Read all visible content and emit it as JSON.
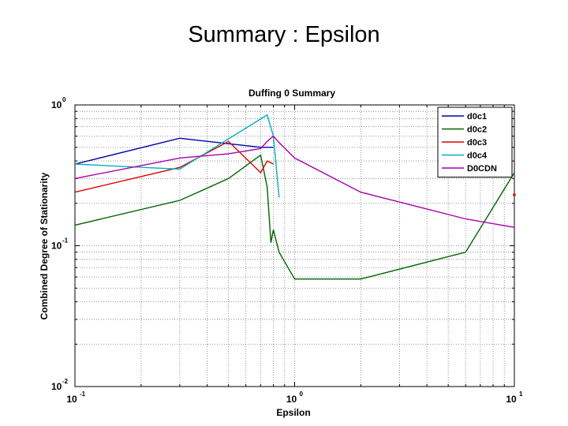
{
  "slide_title": "Summary : Epsilon",
  "chart_data": {
    "type": "line",
    "title": "Duffing 0 Summary",
    "xlabel": "Epsilon",
    "ylabel": "Combined Degree of Stationarity",
    "x_scale": "log",
    "y_scale": "log",
    "xlim": [
      0.1,
      10
    ],
    "ylim": [
      0.01,
      1
    ],
    "grid": true,
    "legend_position": "top-right",
    "x_ticks": [
      {
        "base": "10",
        "exp": "-1"
      },
      {
        "base": "10",
        "exp": "0"
      },
      {
        "base": "10",
        "exp": "1"
      }
    ],
    "y_ticks": [
      {
        "base": "10",
        "exp": "0"
      },
      {
        "base": "10",
        "exp": "-1"
      },
      {
        "base": "10",
        "exp": "-2"
      }
    ],
    "series": [
      {
        "name": "d0c1",
        "color": "#0000aa",
        "points": [
          [
            0.1,
            0.38
          ],
          [
            0.3,
            0.58
          ],
          [
            0.5,
            0.53
          ],
          [
            0.7,
            0.5
          ],
          [
            0.75,
            0.5
          ],
          [
            0.8,
            0.5
          ]
        ]
      },
      {
        "name": "d0c2",
        "color": "#006400",
        "points": [
          [
            0.1,
            0.14
          ],
          [
            0.3,
            0.21
          ],
          [
            0.5,
            0.3
          ],
          [
            0.7,
            0.44
          ],
          [
            0.75,
            0.26
          ],
          [
            0.78,
            0.105
          ],
          [
            0.8,
            0.13
          ],
          [
            0.85,
            0.09
          ],
          [
            1.0,
            0.058
          ],
          [
            2.0,
            0.058
          ],
          [
            6.0,
            0.09
          ],
          [
            10.0,
            0.33
          ]
        ]
      },
      {
        "name": "d0c3",
        "color": "#dd0000",
        "points": [
          [
            0.1,
            0.24
          ],
          [
            0.3,
            0.36
          ],
          [
            0.5,
            0.55
          ],
          [
            0.7,
            0.33
          ],
          [
            0.75,
            0.4
          ],
          [
            0.8,
            0.38
          ]
        ]
      },
      {
        "name": "d0c4",
        "color": "#00b0c0",
        "points": [
          [
            0.1,
            0.38
          ],
          [
            0.3,
            0.35
          ],
          [
            0.75,
            0.85
          ],
          [
            0.8,
            0.6
          ],
          [
            0.85,
            0.22
          ]
        ]
      },
      {
        "name": "D0CDN",
        "color": "#aa00aa",
        "points": [
          [
            0.1,
            0.3
          ],
          [
            0.3,
            0.42
          ],
          [
            0.5,
            0.45
          ],
          [
            0.7,
            0.49
          ],
          [
            0.75,
            0.55
          ],
          [
            0.8,
            0.6
          ],
          [
            0.85,
            0.54
          ],
          [
            1.0,
            0.42
          ],
          [
            2.0,
            0.24
          ],
          [
            6.0,
            0.155
          ],
          [
            10.0,
            0.135
          ]
        ]
      }
    ],
    "extra_markers": [
      {
        "x": 10.0,
        "y": 0.23,
        "color": "#dd0000"
      }
    ]
  }
}
